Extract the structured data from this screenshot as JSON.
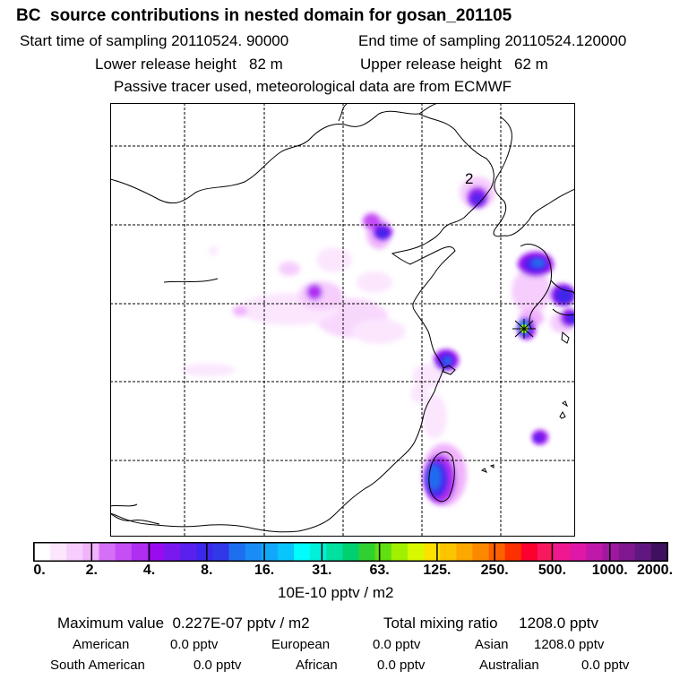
{
  "header": {
    "title": "BC  source contributions in nested domain for gosan_201105",
    "start_time": "Start time of sampling 20110524. 90000",
    "end_time": "End time of sampling 20110524.120000",
    "lower_height": "Lower release height   82 m",
    "upper_height": "Upper release height   62 m",
    "tracer_note": "Passive tracer used, meteorological data are from ECMWF"
  },
  "map": {
    "marker_label": "2",
    "receptor": "receptor-star"
  },
  "colorbar": {
    "colors": [
      "#ffffff",
      "#fbe6fe",
      "#f6cdfd",
      "#f0b3fc",
      "#d66ff7",
      "#c64ef5",
      "#b02df2",
      "#9a0cf0",
      "#7a18f0",
      "#5a20ee",
      "#3c28ec",
      "#3038e8",
      "#1e6ef0",
      "#1a8cf5",
      "#12a8fa",
      "#0ac4fc",
      "#00fcfc",
      "#00f0d8",
      "#00e0a0",
      "#00d070",
      "#30d030",
      "#60e010",
      "#a0f000",
      "#d8f800",
      "#fce000",
      "#fcc400",
      "#fca800",
      "#fc8800",
      "#fc6000",
      "#fc3000",
      "#fc0030",
      "#f81860",
      "#f01890",
      "#e018a8",
      "#c018a8",
      "#a018a0",
      "#801890",
      "#601880",
      "#401060"
    ],
    "tick_labels": [
      "0.",
      "2.",
      "4.",
      "8.",
      "16.",
      "31.",
      "63.",
      "125.",
      "250.",
      "500.",
      "1000.",
      "2000."
    ],
    "units": "10E-10 pptv / m2"
  },
  "stats": {
    "max_value": "Maximum value  0.227E-07 pptv / m2",
    "total_mixing": "Total mixing ratio     1208.0 pptv",
    "sources_row1": [
      {
        "name": "American",
        "value": "0.0 pptv"
      },
      {
        "name": "European",
        "value": "0.0 pptv"
      },
      {
        "name": "Asian",
        "value": "1208.0 pptv"
      }
    ],
    "sources_row2": [
      {
        "name": "South American",
        "value": "0.0 pptv"
      },
      {
        "name": "African",
        "value": "0.0 pptv"
      },
      {
        "name": "Australian",
        "value": "0.0 pptv"
      }
    ]
  }
}
